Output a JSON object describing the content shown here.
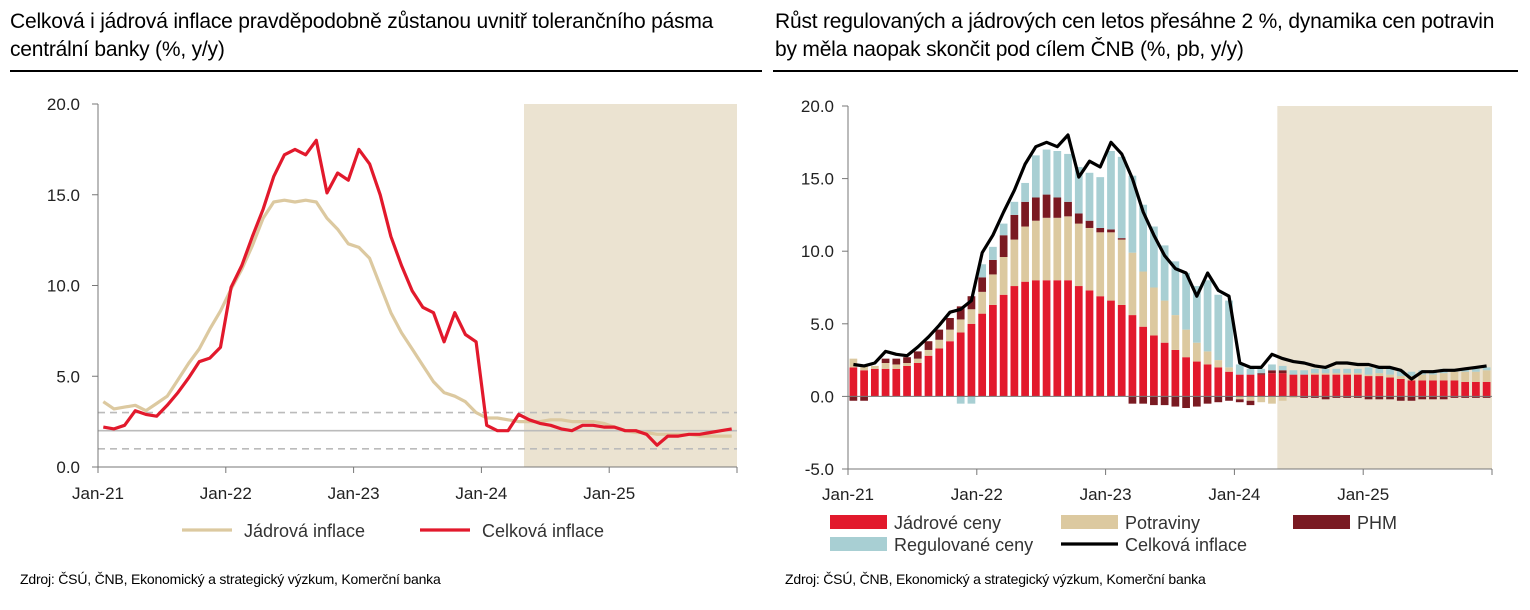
{
  "left": {
    "title": "Celková i jádrová inflace pravděpodobně zůstanou uvnitř tolerančního pásma centrální banky (%, y/y)",
    "source": "Zdroj: ČSÚ, ČNB, Ekonomický a strategický výzkum, Komerční banka"
  },
  "right": {
    "title": "Růst regulovaných a jádrových cen letos přesáhne 2 %, dynamika cen potravin by měla naopak skončit pod cílem ČNB (%, pb, y/y)",
    "source": "Zdroj: ČSÚ, ČNB, Ekonomický a strategický výzkum, Komerční banka"
  },
  "chart_data": [
    {
      "type": "line",
      "x": [
        "2021-01",
        "2021-02",
        "2021-03",
        "2021-04",
        "2021-05",
        "2021-06",
        "2021-07",
        "2021-08",
        "2021-09",
        "2021-10",
        "2021-11",
        "2021-12",
        "2022-01",
        "2022-02",
        "2022-03",
        "2022-04",
        "2022-05",
        "2022-06",
        "2022-07",
        "2022-08",
        "2022-09",
        "2022-10",
        "2022-11",
        "2022-12",
        "2023-01",
        "2023-02",
        "2023-03",
        "2023-04",
        "2023-05",
        "2023-06",
        "2023-07",
        "2023-08",
        "2023-09",
        "2023-10",
        "2023-11",
        "2023-12",
        "2024-01",
        "2024-02",
        "2024-03",
        "2024-04",
        "2024-05",
        "2024-06",
        "2024-07",
        "2024-08",
        "2024-09",
        "2024-10",
        "2024-11",
        "2024-12",
        "2025-01",
        "2025-02",
        "2025-03",
        "2025-04",
        "2025-05",
        "2025-06",
        "2025-07",
        "2025-08",
        "2025-09",
        "2025-10",
        "2025-11",
        "2025-12"
      ],
      "x_tick_labels": [
        "Jan-21",
        "Jan-22",
        "Jan-23",
        "Jan-24",
        "Jan-25"
      ],
      "series": [
        {
          "name": "Jádrová inflace",
          "color": "#dcc9a0",
          "values": [
            3.6,
            3.2,
            3.3,
            3.4,
            3.1,
            3.5,
            3.9,
            4.8,
            5.7,
            6.5,
            7.6,
            8.6,
            9.8,
            10.9,
            12.2,
            13.7,
            14.6,
            14.7,
            14.6,
            14.7,
            14.6,
            13.7,
            13.1,
            12.3,
            12.1,
            11.5,
            10.0,
            8.5,
            7.4,
            6.5,
            5.6,
            4.7,
            4.1,
            3.9,
            3.6,
            3.0,
            2.7,
            2.7,
            2.6,
            2.5,
            2.5,
            2.5,
            2.6,
            2.6,
            2.5,
            2.5,
            2.5,
            2.4,
            2.2,
            2.0,
            1.9,
            1.9,
            1.8,
            1.8,
            1.8,
            1.8,
            1.7,
            1.7,
            1.7,
            1.7
          ]
        },
        {
          "name": "Celková inflace",
          "color": "#e2192c",
          "values": [
            2.2,
            2.1,
            2.3,
            3.1,
            2.9,
            2.8,
            3.4,
            4.1,
            4.9,
            5.8,
            6.0,
            6.6,
            9.9,
            11.1,
            12.7,
            14.2,
            16.0,
            17.2,
            17.5,
            17.2,
            18.0,
            15.1,
            16.2,
            15.8,
            17.5,
            16.7,
            15.0,
            12.7,
            11.1,
            9.7,
            8.8,
            8.5,
            6.9,
            8.5,
            7.3,
            6.9,
            2.3,
            2.0,
            2.0,
            2.9,
            2.6,
            2.4,
            2.3,
            2.1,
            2.0,
            2.3,
            2.3,
            2.2,
            2.2,
            2.0,
            2.0,
            1.8,
            1.2,
            1.7,
            1.7,
            1.8,
            1.8,
            1.9,
            2.0,
            2.1
          ]
        }
      ],
      "ylim": [
        0,
        20
      ],
      "yticks": [
        "0.0",
        "5.0",
        "10.0",
        "15.0",
        "20.0"
      ],
      "reference_lines": [
        {
          "value": 2.0,
          "style": "solid",
          "color": "#bbbbbb"
        },
        {
          "value": 1.0,
          "style": "dashed",
          "color": "#bbbbbb"
        },
        {
          "value": 3.0,
          "style": "dashed",
          "color": "#bbbbbb"
        }
      ],
      "forecast_shading_from": "2024-05",
      "forecast_color": "#ebe3d1",
      "grid": false,
      "legend_position": "bottom"
    },
    {
      "type": "bar",
      "stacked": true,
      "x": [
        "2021-01",
        "2021-02",
        "2021-03",
        "2021-04",
        "2021-05",
        "2021-06",
        "2021-07",
        "2021-08",
        "2021-09",
        "2021-10",
        "2021-11",
        "2021-12",
        "2022-01",
        "2022-02",
        "2022-03",
        "2022-04",
        "2022-05",
        "2022-06",
        "2022-07",
        "2022-08",
        "2022-09",
        "2022-10",
        "2022-11",
        "2022-12",
        "2023-01",
        "2023-02",
        "2023-03",
        "2023-04",
        "2023-05",
        "2023-06",
        "2023-07",
        "2023-08",
        "2023-09",
        "2023-10",
        "2023-11",
        "2023-12",
        "2024-01",
        "2024-02",
        "2024-03",
        "2024-04",
        "2024-05",
        "2024-06",
        "2024-07",
        "2024-08",
        "2024-09",
        "2024-10",
        "2024-11",
        "2024-12",
        "2025-01",
        "2025-02",
        "2025-03",
        "2025-04",
        "2025-05",
        "2025-06",
        "2025-07",
        "2025-08",
        "2025-09",
        "2025-10",
        "2025-11",
        "2025-12"
      ],
      "x_tick_labels": [
        "Jan-21",
        "Jan-22",
        "Jan-23",
        "Jan-24",
        "Jan-25"
      ],
      "series": [
        {
          "name": "Jádrové ceny",
          "color": "#e2192c",
          "values": [
            2.0,
            1.8,
            1.9,
            1.9,
            1.9,
            2.1,
            2.3,
            2.8,
            3.3,
            3.8,
            4.4,
            5.0,
            5.7,
            6.3,
            7.0,
            7.6,
            7.9,
            8.0,
            8.0,
            8.0,
            8.0,
            7.6,
            7.3,
            6.9,
            6.6,
            6.3,
            5.6,
            4.8,
            4.2,
            3.7,
            3.2,
            2.7,
            2.4,
            2.2,
            2.0,
            1.7,
            1.5,
            1.5,
            1.5,
            1.6,
            1.6,
            1.5,
            1.5,
            1.5,
            1.5,
            1.5,
            1.5,
            1.5,
            1.4,
            1.4,
            1.3,
            1.2,
            1.1,
            1.1,
            1.1,
            1.1,
            1.1,
            1.0,
            1.0,
            1.0
          ]
        },
        {
          "name": "Potraviny",
          "color": "#dcc9a0",
          "values": [
            0.6,
            0.3,
            0.2,
            0.4,
            0.3,
            0.2,
            0.3,
            0.4,
            0.6,
            0.8,
            0.9,
            1.0,
            1.5,
            2.1,
            2.6,
            3.2,
            3.8,
            4.1,
            4.3,
            4.3,
            4.4,
            4.3,
            4.3,
            4.4,
            4.7,
            4.5,
            4.3,
            3.8,
            3.3,
            2.9,
            2.4,
            1.9,
            1.3,
            0.9,
            0.5,
            0.3,
            -0.2,
            -0.3,
            -0.4,
            -0.5,
            -0.3,
            -0.1,
            0.0,
            0.1,
            0.1,
            0.1,
            0.1,
            0.1,
            0.1,
            0.2,
            0.2,
            0.2,
            0.3,
            0.4,
            0.4,
            0.5,
            0.6,
            0.7,
            0.7,
            0.8
          ]
        },
        {
          "name": "PHM",
          "color": "#7a1a22",
          "values": [
            -0.3,
            -0.3,
            0.0,
            0.3,
            0.4,
            0.4,
            0.5,
            0.6,
            0.7,
            0.8,
            0.9,
            0.9,
            1.0,
            1.0,
            1.5,
            1.7,
            1.7,
            1.6,
            1.6,
            1.4,
            1.0,
            0.7,
            0.5,
            0.3,
            0.2,
            0.1,
            -0.5,
            -0.5,
            -0.6,
            -0.6,
            -0.7,
            -0.8,
            -0.7,
            -0.5,
            -0.4,
            -0.3,
            -0.2,
            -0.3,
            0.1,
            0.2,
            0.2,
            0.0,
            -0.1,
            -0.1,
            -0.2,
            -0.1,
            -0.1,
            -0.1,
            -0.2,
            -0.2,
            -0.2,
            -0.3,
            -0.3,
            -0.2,
            -0.2,
            -0.2,
            -0.1,
            -0.1,
            -0.1,
            -0.1
          ]
        },
        {
          "name": "Regulované ceny",
          "color": "#a8cfd3",
          "values": [
            0.0,
            0.0,
            0.0,
            0.0,
            0.0,
            0.0,
            0.0,
            0.0,
            0.0,
            0.0,
            -0.5,
            -0.5,
            0.9,
            0.9,
            0.8,
            0.9,
            1.3,
            2.9,
            3.1,
            3.2,
            3.3,
            3.2,
            3.3,
            3.5,
            5.4,
            5.6,
            5.3,
            4.6,
            4.2,
            3.8,
            3.7,
            3.9,
            3.9,
            4.9,
            4.5,
            4.6,
            0.7,
            0.4,
            0.3,
            0.4,
            0.3,
            0.3,
            0.3,
            0.3,
            0.3,
            0.3,
            0.3,
            0.3,
            0.5,
            0.4,
            0.4,
            0.4,
            0.3,
            0.3,
            0.3,
            0.3,
            0.2,
            0.2,
            0.2,
            0.2
          ]
        }
      ],
      "line_series": {
        "name": "Celková inflace",
        "color": "#000000",
        "values": [
          2.2,
          2.1,
          2.3,
          3.1,
          2.9,
          2.8,
          3.4,
          4.1,
          4.9,
          5.8,
          6.0,
          6.6,
          9.9,
          11.1,
          12.7,
          14.2,
          16.0,
          17.2,
          17.5,
          17.2,
          18.0,
          15.1,
          16.2,
          15.8,
          17.5,
          16.7,
          15.0,
          12.7,
          11.1,
          9.7,
          8.8,
          8.5,
          6.9,
          8.5,
          7.3,
          6.9,
          2.3,
          2.0,
          2.0,
          2.9,
          2.6,
          2.4,
          2.3,
          2.1,
          2.0,
          2.3,
          2.3,
          2.2,
          2.2,
          2.0,
          2.0,
          1.8,
          1.2,
          1.7,
          1.7,
          1.8,
          1.8,
          1.9,
          2.0,
          2.1
        ]
      },
      "ylim": [
        -5,
        20
      ],
      "yticks": [
        "-5.0",
        "0.0",
        "5.0",
        "10.0",
        "15.0",
        "20.0"
      ],
      "forecast_shading_from": "2024-05",
      "forecast_color": "#ebe3d1",
      "grid": false,
      "legend_position": "bottom"
    }
  ]
}
